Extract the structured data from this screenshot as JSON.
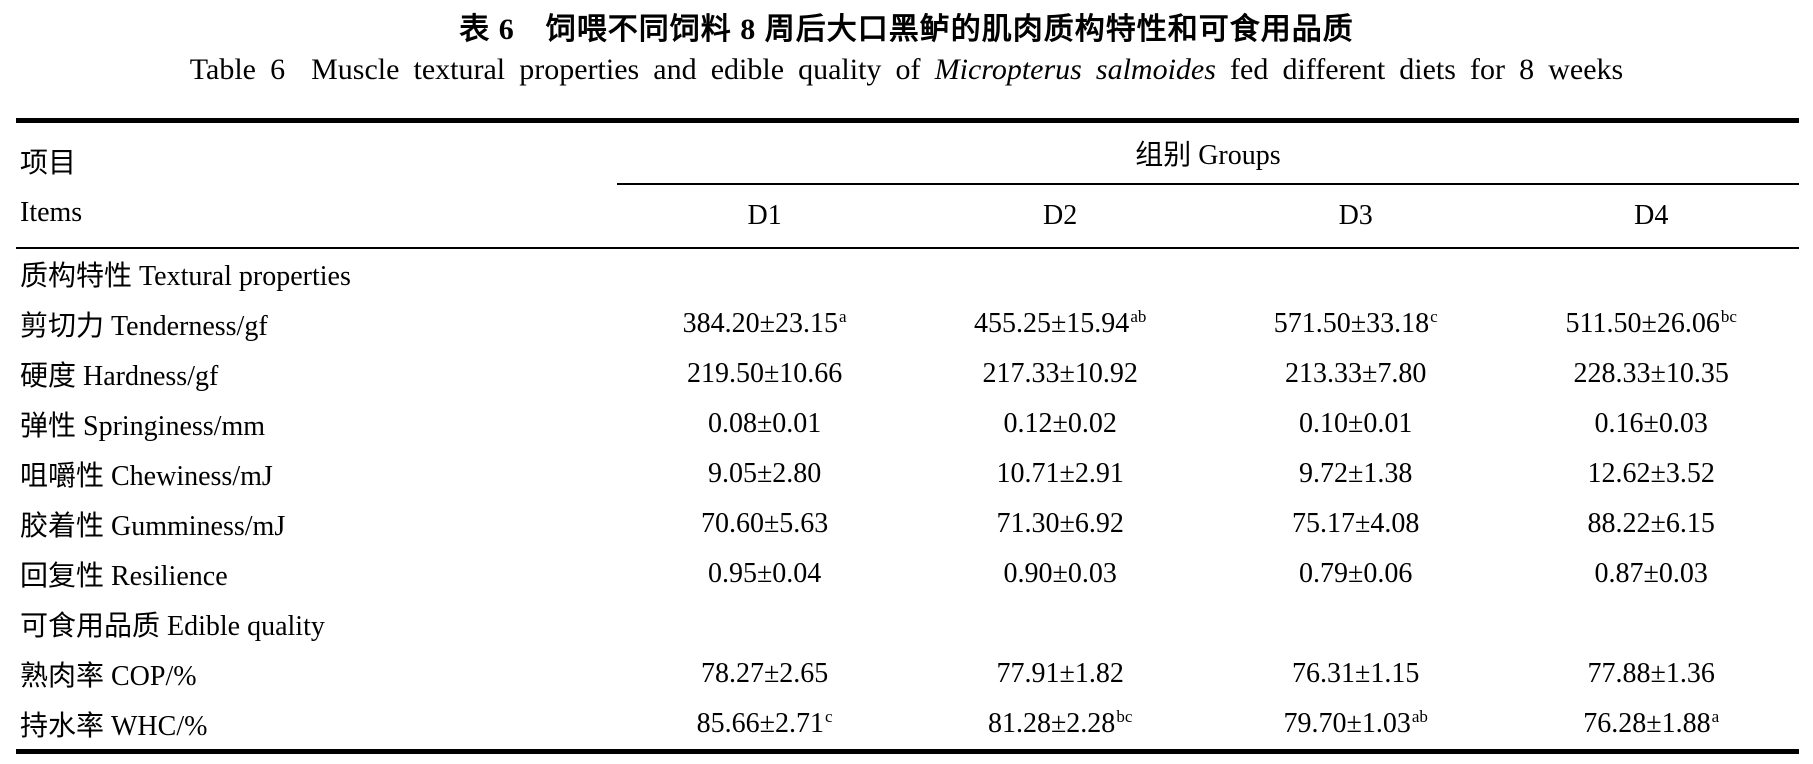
{
  "page": {
    "background_color": "#ffffff",
    "text_color": "#000000",
    "rule_color": "#000000"
  },
  "title": {
    "cn": "表 6　饲喂不同饲料 8 周后大口黑鲈的肌肉质构特性和可食用品质",
    "en_label": "Table 6",
    "en_before_italic": "Muscle textural properties and edible quality of ",
    "en_italic": "Micropterus salmoides",
    "en_after_italic": " fed different diets for 8 weeks"
  },
  "header": {
    "items_cn": "项目",
    "items_en": "Items",
    "groups": "组别 Groups"
  },
  "chart_data": {
    "type": "table",
    "columns": [
      "D1",
      "D2",
      "D3",
      "D4"
    ],
    "rows": [
      {
        "label": "质构特性 Textural properties",
        "section": true,
        "cells": [
          {
            "value": "",
            "sup": ""
          },
          {
            "value": "",
            "sup": ""
          },
          {
            "value": "",
            "sup": ""
          },
          {
            "value": "",
            "sup": ""
          }
        ]
      },
      {
        "label": "剪切力 Tenderness/gf",
        "section": false,
        "cells": [
          {
            "value": "384.20±23.15",
            "sup": "a"
          },
          {
            "value": "455.25±15.94",
            "sup": "ab"
          },
          {
            "value": "571.50±33.18",
            "sup": "c"
          },
          {
            "value": "511.50±26.06",
            "sup": "bc"
          }
        ]
      },
      {
        "label": "硬度 Hardness/gf",
        "section": false,
        "cells": [
          {
            "value": "219.50±10.66",
            "sup": ""
          },
          {
            "value": "217.33±10.92",
            "sup": ""
          },
          {
            "value": "213.33±7.80",
            "sup": ""
          },
          {
            "value": "228.33±10.35",
            "sup": ""
          }
        ]
      },
      {
        "label": "弹性 Springiness/mm",
        "section": false,
        "cells": [
          {
            "value": "0.08±0.01",
            "sup": ""
          },
          {
            "value": "0.12±0.02",
            "sup": ""
          },
          {
            "value": "0.10±0.01",
            "sup": ""
          },
          {
            "value": "0.16±0.03",
            "sup": ""
          }
        ]
      },
      {
        "label": "咀嚼性 Chewiness/mJ",
        "section": false,
        "cells": [
          {
            "value": "9.05±2.80",
            "sup": ""
          },
          {
            "value": "10.71±2.91",
            "sup": ""
          },
          {
            "value": "9.72±1.38",
            "sup": ""
          },
          {
            "value": "12.62±3.52",
            "sup": ""
          }
        ]
      },
      {
        "label": "胶着性 Gumminess/mJ",
        "section": false,
        "cells": [
          {
            "value": "70.60±5.63",
            "sup": ""
          },
          {
            "value": "71.30±6.92",
            "sup": ""
          },
          {
            "value": "75.17±4.08",
            "sup": ""
          },
          {
            "value": "88.22±6.15",
            "sup": ""
          }
        ]
      },
      {
        "label": "回复性 Resilience",
        "section": false,
        "cells": [
          {
            "value": "0.95±0.04",
            "sup": ""
          },
          {
            "value": "0.90±0.03",
            "sup": ""
          },
          {
            "value": "0.79±0.06",
            "sup": ""
          },
          {
            "value": "0.87±0.03",
            "sup": ""
          }
        ]
      },
      {
        "label": "可食用品质 Edible quality",
        "section": true,
        "cells": [
          {
            "value": "",
            "sup": ""
          },
          {
            "value": "",
            "sup": ""
          },
          {
            "value": "",
            "sup": ""
          },
          {
            "value": "",
            "sup": ""
          }
        ]
      },
      {
        "label": "熟肉率 COP/%",
        "section": false,
        "cells": [
          {
            "value": "78.27±2.65",
            "sup": ""
          },
          {
            "value": "77.91±1.82",
            "sup": ""
          },
          {
            "value": "76.31±1.15",
            "sup": ""
          },
          {
            "value": "77.88±1.36",
            "sup": ""
          }
        ]
      },
      {
        "label": "持水率 WHC/%",
        "section": false,
        "cells": [
          {
            "value": "85.66±2.71",
            "sup": "c"
          },
          {
            "value": "81.28±2.28",
            "sup": "bc"
          },
          {
            "value": "79.70±1.03",
            "sup": "ab"
          },
          {
            "value": "76.28±1.88",
            "sup": "a"
          }
        ]
      }
    ]
  }
}
